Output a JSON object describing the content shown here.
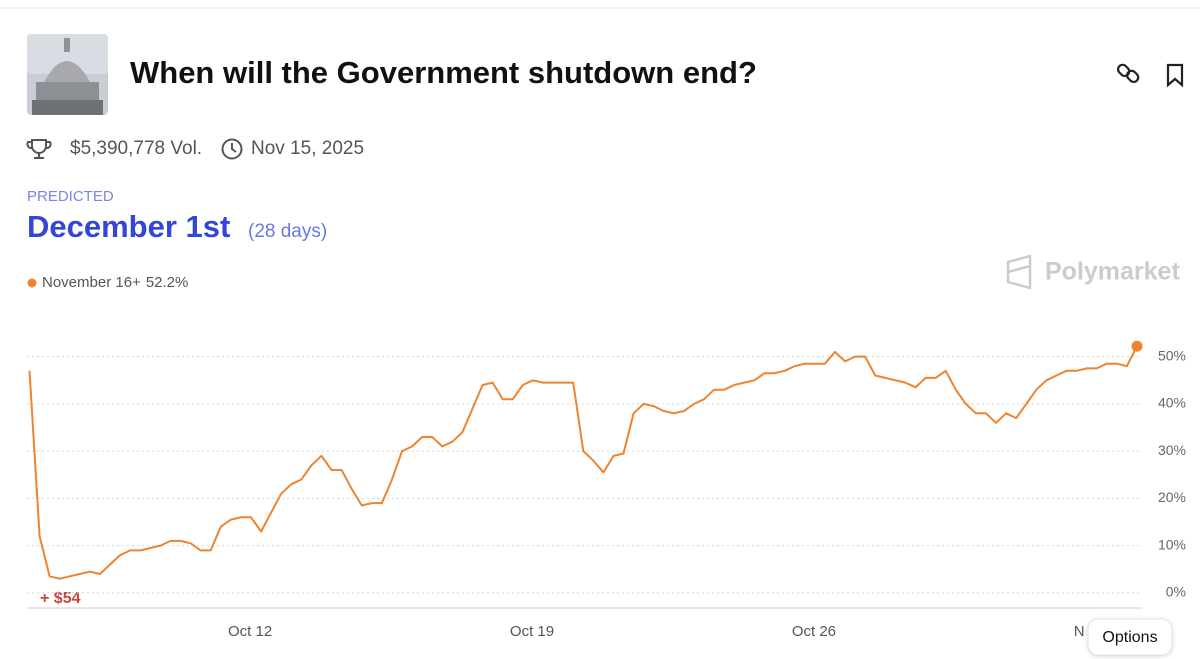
{
  "header": {
    "title": "When will the Government shutdown end?",
    "volume": "$5,390,778 Vol.",
    "end_date": "Nov 15, 2025"
  },
  "prediction": {
    "label": "PREDICTED",
    "outcome": "December 1st",
    "days": "(28 days)"
  },
  "brand": "Polymarket",
  "pnl_badge": "+ $54",
  "options_button": "Options",
  "chart_data": {
    "type": "line",
    "categories": [
      null,
      null,
      null,
      null,
      null,
      null,
      null,
      null,
      null,
      null,
      null,
      null,
      null,
      null,
      null,
      null,
      null,
      null,
      null,
      null,
      null,
      null,
      "Oct 12",
      null,
      null,
      null,
      null,
      null,
      null,
      null,
      null,
      null,
      null,
      null,
      null,
      null,
      null,
      null,
      null,
      null,
      null,
      null,
      null,
      null,
      null,
      null,
      null,
      null,
      null,
      null,
      "Oct 19",
      null,
      null,
      null,
      null,
      null,
      null,
      null,
      null,
      null,
      null,
      null,
      null,
      null,
      null,
      null,
      null,
      null,
      null,
      null,
      null,
      null,
      null,
      null,
      null,
      null,
      null,
      null,
      "Oct 26",
      null,
      null,
      null,
      null,
      null,
      null,
      null,
      null,
      null,
      null,
      null,
      null,
      null,
      null,
      null,
      null,
      null,
      null,
      null,
      null,
      null,
      null,
      null,
      null,
      null,
      null,
      null,
      "N",
      null,
      null,
      null,
      null
    ],
    "series": [
      {
        "name": "November 16+",
        "current_label": "52.2%",
        "color": "#ee8430",
        "values": [
          47,
          12,
          3.5,
          3,
          3.5,
          4,
          4.5,
          4,
          6,
          8,
          9,
          9,
          9.5,
          10,
          11,
          11,
          10.5,
          9,
          9,
          14,
          15.5,
          16,
          16,
          13,
          17,
          21,
          23,
          24,
          27,
          29,
          26,
          26,
          22,
          18.5,
          19,
          19,
          24,
          30,
          31,
          33,
          33,
          31,
          32,
          34,
          39,
          44,
          44.5,
          41,
          41,
          44,
          45,
          44.5,
          44.5,
          44.5,
          44.5,
          30,
          28,
          25.5,
          29,
          29.5,
          38,
          40,
          39.5,
          38.5,
          38,
          38.5,
          40,
          41,
          43,
          43,
          44,
          44.5,
          45,
          46.5,
          46.5,
          47,
          48,
          48.5,
          48.5,
          48.5,
          51,
          49,
          50,
          50,
          46,
          45.5,
          45,
          44.5,
          43.5,
          45.5,
          45.5,
          47,
          43,
          40,
          38,
          38,
          36,
          38,
          37,
          40,
          43,
          45,
          46,
          47,
          47,
          47.5,
          47.5,
          48.5,
          48.5,
          48,
          52.2
        ]
      }
    ],
    "ylim": [
      -3.2,
      55
    ],
    "yticks": [
      {
        "value": 0,
        "label": "0%"
      },
      {
        "value": 10,
        "label": "10%"
      },
      {
        "value": 20,
        "label": "20%"
      },
      {
        "value": 30,
        "label": "30%"
      },
      {
        "value": 40,
        "label": "40%"
      },
      {
        "value": 50,
        "label": "50%"
      }
    ],
    "grid": true
  }
}
